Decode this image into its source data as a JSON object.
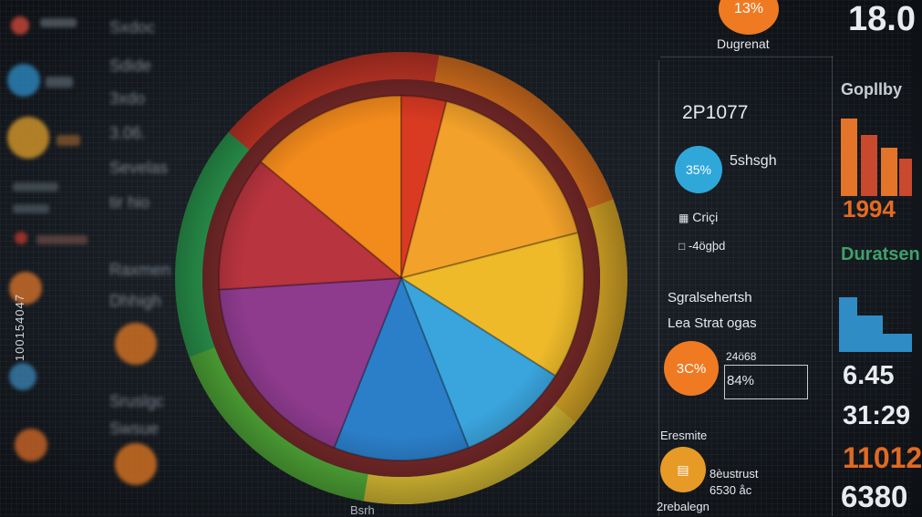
{
  "chart_data": {
    "type": "pie",
    "title": "",
    "slices": [
      {
        "label": "",
        "value": 14,
        "color": "#f28a1c"
      },
      {
        "label": "",
        "value": 4,
        "color": "#d93a22"
      },
      {
        "label": "",
        "value": 17,
        "color": "#f2a12a"
      },
      {
        "label": "",
        "value": 13,
        "color": "#eeba2a"
      },
      {
        "label": "",
        "value": 10,
        "color": "#3aa4dd"
      },
      {
        "label": "",
        "value": 12,
        "color": "#2b7fc9"
      },
      {
        "label": "",
        "value": 18,
        "color": "#8e3b8e"
      },
      {
        "label": "",
        "value": 12,
        "color": "#b8343f"
      }
    ],
    "rim_colors": [
      "#d83b2b",
      "#ef7d22",
      "#f0b92b",
      "#f3d33a",
      "#5bbf3f",
      "#2faa58"
    ]
  },
  "top_badge": {
    "value": "13%",
    "label": "Dugrenat"
  },
  "top_right_number": "18.0",
  "panel": {
    "header_number": "2P1077",
    "badge1": {
      "value": "35%",
      "label": "5shsgh",
      "color": "#2fa7d9"
    },
    "item1": "Criçi",
    "item2": "-4ögþd",
    "section_title": "Sgralsehertsh",
    "sub_title": "Lea Strat ogas",
    "badge2": {
      "value": "3C%",
      "color": "#ef7a22"
    },
    "field_small": "24ö68",
    "field_value": "84%",
    "label_bottom": "Eresmite",
    "badge3_color": "#e89a26",
    "bottom_a": "8èustrust",
    "bottom_b": "6530 åc",
    "bottom_c": "2rebalegn"
  },
  "right_col": {
    "title": "Gopllby",
    "value1": "1994",
    "title2": "Duratsen",
    "num1": "6.45",
    "num2": "31:29",
    "num3": "11012",
    "num4": "6380"
  },
  "left_col": {
    "rows": [
      "Sxdoc",
      "Sdide",
      "3xdo",
      "3.06.",
      "Sevelas",
      "tir hio",
      "Raxmen",
      "Dhhigh",
      "Sruslgc",
      "Swsue"
    ]
  },
  "footer_label": "Bsrh",
  "stock_id": "100154047"
}
